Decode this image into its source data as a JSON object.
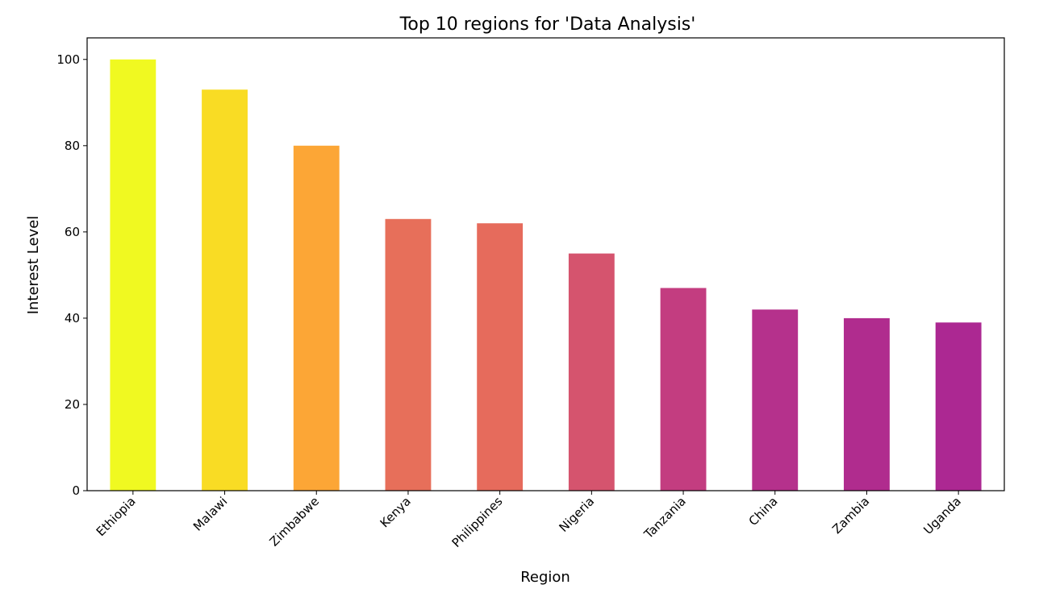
{
  "chart_data": {
    "type": "bar",
    "title": "Top 10 regions for 'Data Analysis'",
    "xlabel": "Region",
    "ylabel": "Interest Level",
    "categories": [
      "Ethiopia",
      "Malawi",
      "Zimbabwe",
      "Kenya",
      "Philippines",
      "Nigeria",
      "Tanzania",
      "China",
      "Zambia",
      "Uganda"
    ],
    "values": [
      100,
      93,
      80,
      63,
      62,
      55,
      47,
      42,
      40,
      39
    ],
    "colors": [
      "#f0f921",
      "#f9dc24",
      "#fca636",
      "#e76f5a",
      "#e66b5c",
      "#d5546e",
      "#c33d80",
      "#b5318c",
      "#b02c8e",
      "#ac2892"
    ],
    "ylim": [
      0,
      105
    ],
    "yticks": [
      0,
      20,
      40,
      60,
      80,
      100
    ],
    "grid": false,
    "legend": "none"
  }
}
